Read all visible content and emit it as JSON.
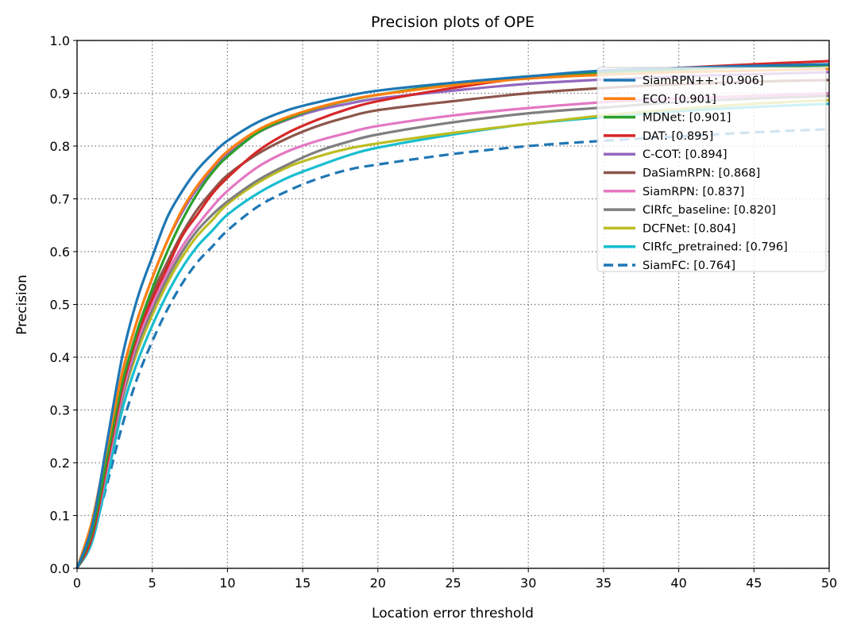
{
  "chart_data": {
    "type": "line",
    "title": "Precision plots of OPE",
    "xlabel": "Location error threshold",
    "ylabel": "Precision",
    "xlim": [
      0,
      50
    ],
    "ylim": [
      0,
      1
    ],
    "xticks": [
      "0",
      "5",
      "10",
      "15",
      "20",
      "25",
      "30",
      "35",
      "40",
      "45",
      "50"
    ],
    "yticks": [
      "0.0",
      "0.1",
      "0.2",
      "0.3",
      "0.4",
      "0.5",
      "0.6",
      "0.7",
      "0.8",
      "0.9",
      "1.0"
    ],
    "grid": true,
    "grid_style": "dotted",
    "legend_position": "upper-right",
    "x": [
      0,
      1,
      2,
      3,
      4,
      5,
      6,
      7,
      8,
      9,
      10,
      12,
      14,
      16,
      18,
      20,
      25,
      30,
      35,
      40,
      45,
      50
    ],
    "series": [
      {
        "name": "SiamRPN++: [0.906]",
        "color": "#1f77b4",
        "dash": false,
        "values": [
          0,
          0.08,
          0.24,
          0.4,
          0.51,
          0.59,
          0.665,
          0.715,
          0.755,
          0.785,
          0.81,
          0.845,
          0.868,
          0.883,
          0.895,
          0.905,
          0.92,
          0.932,
          0.943,
          0.948,
          0.952,
          0.955
        ]
      },
      {
        "name": "ECO: [0.901]",
        "color": "#ff7f0e",
        "dash": false,
        "values": [
          0,
          0.09,
          0.23,
          0.37,
          0.47,
          0.55,
          0.62,
          0.68,
          0.725,
          0.76,
          0.79,
          0.83,
          0.855,
          0.873,
          0.887,
          0.897,
          0.915,
          0.928,
          0.935,
          0.94,
          0.943,
          0.946
        ]
      },
      {
        "name": "MDNet: [0.901]",
        "color": "#2ca02c",
        "dash": false,
        "values": [
          0,
          0.07,
          0.21,
          0.35,
          0.45,
          0.53,
          0.6,
          0.66,
          0.71,
          0.75,
          0.78,
          0.825,
          0.852,
          0.872,
          0.886,
          0.897,
          0.918,
          0.932,
          0.94,
          0.945,
          0.95,
          0.953
        ]
      },
      {
        "name": "DAT: [0.895]",
        "color": "#d62728",
        "dash": false,
        "values": [
          0,
          0.06,
          0.2,
          0.34,
          0.44,
          0.51,
          0.57,
          0.63,
          0.67,
          0.71,
          0.74,
          0.79,
          0.825,
          0.85,
          0.87,
          0.885,
          0.91,
          0.93,
          0.94,
          0.948,
          0.955,
          0.961
        ]
      },
      {
        "name": "C-COT: [0.894]",
        "color": "#9467bd",
        "dash": false,
        "values": [
          0,
          0.08,
          0.23,
          0.37,
          0.47,
          0.55,
          0.62,
          0.675,
          0.72,
          0.755,
          0.785,
          0.825,
          0.85,
          0.868,
          0.88,
          0.89,
          0.905,
          0.918,
          0.926,
          0.932,
          0.936,
          0.94
        ]
      },
      {
        "name": "DaSiamRPN: [0.868]",
        "color": "#8c564b",
        "dash": false,
        "values": [
          0,
          0.06,
          0.2,
          0.34,
          0.44,
          0.52,
          0.58,
          0.635,
          0.68,
          0.715,
          0.745,
          0.785,
          0.815,
          0.838,
          0.855,
          0.868,
          0.885,
          0.9,
          0.91,
          0.917,
          0.922,
          0.925
        ]
      },
      {
        "name": "SiamRPN: [0.837]",
        "color": "#e377c2",
        "dash": false,
        "values": [
          0,
          0.06,
          0.19,
          0.33,
          0.43,
          0.5,
          0.56,
          0.61,
          0.65,
          0.685,
          0.715,
          0.76,
          0.79,
          0.81,
          0.825,
          0.838,
          0.858,
          0.872,
          0.883,
          0.89,
          0.895,
          0.9
        ]
      },
      {
        "name": "CIRfc_baseline: [0.820]",
        "color": "#7f7f7f",
        "dash": false,
        "values": [
          0,
          0.06,
          0.19,
          0.32,
          0.42,
          0.49,
          0.55,
          0.6,
          0.64,
          0.67,
          0.695,
          0.735,
          0.765,
          0.79,
          0.808,
          0.822,
          0.845,
          0.862,
          0.873,
          0.883,
          0.89,
          0.895
        ]
      },
      {
        "name": "DCFNet: [0.804]",
        "color": "#bcbd22",
        "dash": false,
        "values": [
          0,
          0.06,
          0.19,
          0.32,
          0.41,
          0.48,
          0.54,
          0.59,
          0.63,
          0.66,
          0.69,
          0.73,
          0.76,
          0.78,
          0.795,
          0.805,
          0.825,
          0.842,
          0.858,
          0.87,
          0.88,
          0.887
        ]
      },
      {
        "name": "CIRfc_pretrained: [0.796]",
        "color": "#17becf",
        "dash": false,
        "values": [
          0,
          0.05,
          0.17,
          0.3,
          0.39,
          0.46,
          0.52,
          0.57,
          0.61,
          0.64,
          0.67,
          0.71,
          0.74,
          0.762,
          0.782,
          0.797,
          0.822,
          0.842,
          0.855,
          0.866,
          0.874,
          0.88
        ]
      },
      {
        "name": "SiamFC: [0.764]",
        "color": "#1f77b4",
        "dash": true,
        "values": [
          0,
          0.06,
          0.16,
          0.27,
          0.36,
          0.43,
          0.49,
          0.54,
          0.58,
          0.61,
          0.64,
          0.685,
          0.715,
          0.738,
          0.755,
          0.765,
          0.785,
          0.8,
          0.81,
          0.818,
          0.826,
          0.832
        ]
      }
    ]
  }
}
